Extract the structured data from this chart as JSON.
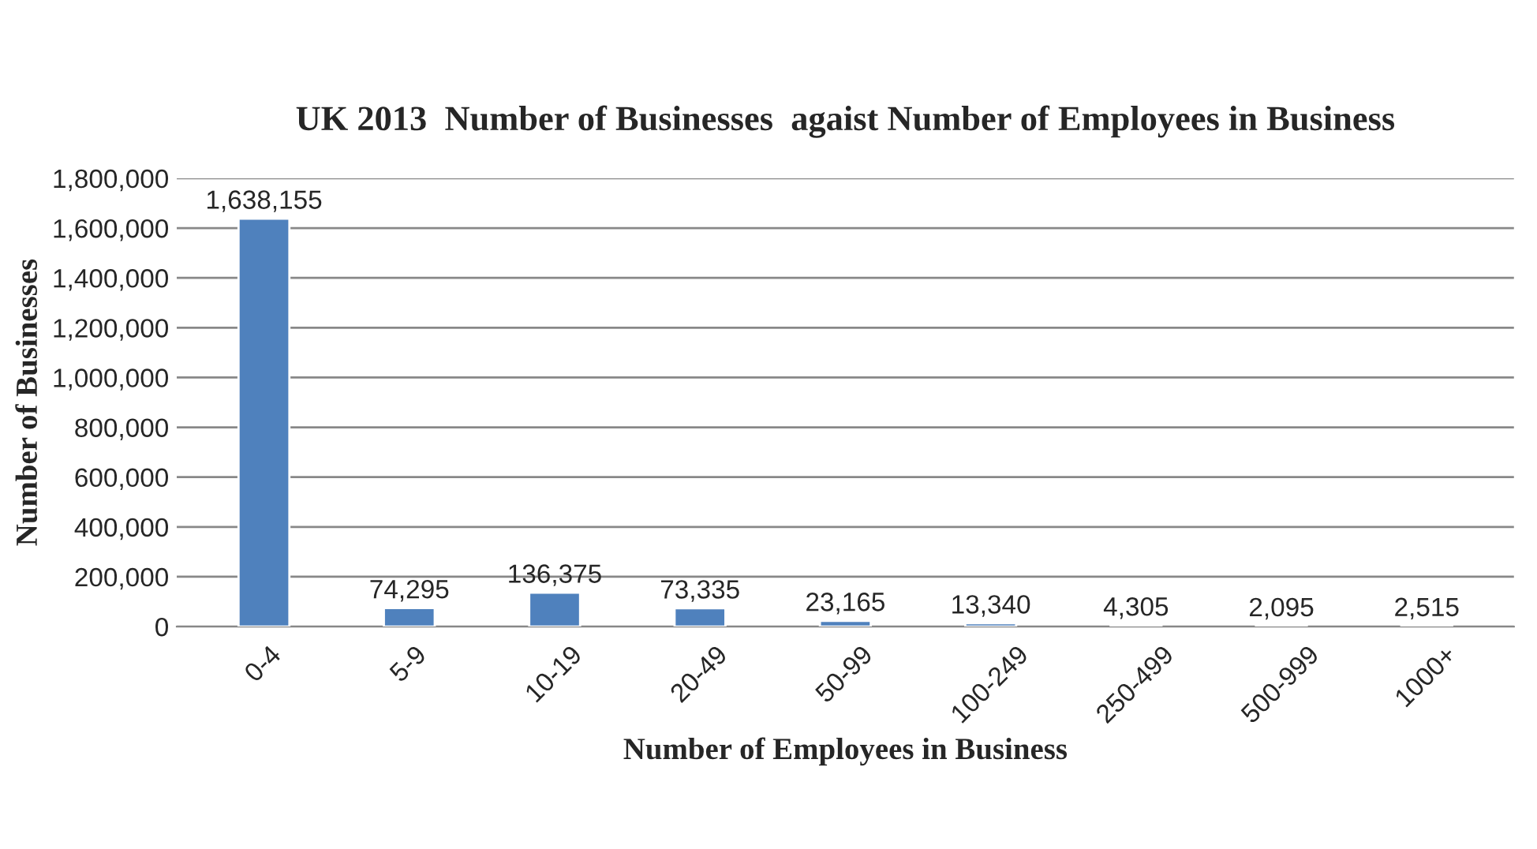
{
  "chart_data": {
    "type": "bar",
    "title": "UK 2013  Number of Businesses  agaist Number of Employees in Business",
    "xlabel": "Number of Employees in Business",
    "ylabel": "Number of Businesses",
    "categories": [
      "0-4",
      "5-9",
      "10-19",
      "20-49",
      "50-99",
      "100-249",
      "250-499",
      "500-999",
      "1000+"
    ],
    "values": [
      1638155,
      74295,
      136375,
      73335,
      23165,
      13340,
      4305,
      2095,
      2515
    ],
    "color": "#4f81bd",
    "ylim": [
      0,
      1800000
    ],
    "yticks": [
      0,
      {
        "value": 200000,
        "label": "200,000"
      },
      {
        "value": 400000,
        "label": "400,000"
      },
      {
        "value": 600000,
        "label": "600,000"
      },
      {
        "value": 800000,
        "label": "800,000"
      },
      {
        "value": 1000000,
        "label": "1,000,000"
      },
      {
        "value": 1200000,
        "label": "1,200,000"
      },
      {
        "value": 1400000,
        "label": "1,400,000"
      },
      {
        "value": 1600000,
        "label": "1,600,000"
      },
      {
        "value": 1800000,
        "label": "1,800,000"
      }
    ],
    "grid": "y",
    "value_labels": [
      "1,638,155",
      "74,295",
      "136,375",
      "73,335",
      "23,165",
      "13,340",
      "4,305",
      "2,095",
      "2,515"
    ],
    "legend": false
  }
}
